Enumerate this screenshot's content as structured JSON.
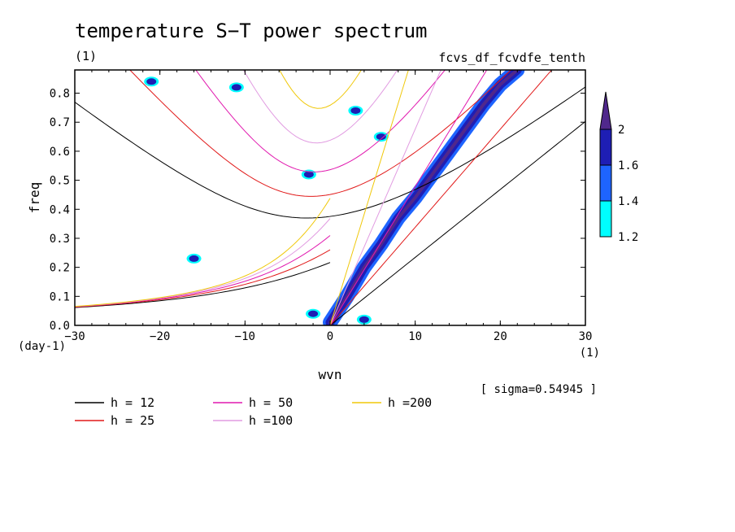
{
  "chart_data": {
    "type": "heatmap",
    "title": "temperature S−T power spectrum",
    "title_units": "(1)",
    "source_label": "fcvs_df_fcvdfe_tenth",
    "xlabel": "wvn",
    "x_units": "(1)",
    "ylabel": "freq",
    "y_units": "(day-1)",
    "xlim": [
      -30,
      30
    ],
    "ylim": [
      0,
      0.88
    ],
    "x_ticks": [
      -30,
      -20,
      -10,
      0,
      10,
      20,
      30
    ],
    "x_tick_labels": [
      "−30",
      "−20",
      "−10",
      "0",
      "10",
      "20",
      "30"
    ],
    "y_ticks": [
      0,
      0.1,
      0.2,
      0.3,
      0.4,
      0.5,
      0.6,
      0.7,
      0.8
    ],
    "y_tick_labels": [
      "0.0",
      "0.1",
      "0.2",
      "0.3",
      "0.4",
      "0.5",
      "0.6",
      "0.7",
      "0.8"
    ],
    "sigma_label": "[ sigma=0.54945 ]",
    "colorbar": {
      "levels": [
        1.2,
        1.4,
        1.6,
        2
      ],
      "level_labels": [
        "1.2",
        "1.4",
        "1.6",
        "2"
      ],
      "colors": [
        "#00ffff",
        "#1e64ff",
        "#1e1eb4",
        "#50288c"
      ]
    },
    "dispersion_curves": [
      {
        "label": "h = 12",
        "h": 12,
        "color": "#000000"
      },
      {
        "label": "h = 25",
        "h": 25,
        "color": "#e11919"
      },
      {
        "label": "h = 50",
        "h": 50,
        "color": "#e119af"
      },
      {
        "label": "h =100",
        "h": 100,
        "color": "#e19be1"
      },
      {
        "label": "h =200",
        "h": 200,
        "color": "#f0c80a"
      }
    ],
    "power_features": [
      {
        "kind": "ridge",
        "x": [
          0,
          2,
          4,
          6,
          8,
          10,
          12,
          14,
          16,
          18,
          20,
          22
        ],
        "y": [
          0.01,
          0.1,
          0.2,
          0.28,
          0.37,
          0.44,
          0.52,
          0.6,
          0.68,
          0.76,
          0.83,
          0.88
        ]
      },
      {
        "kind": "blob",
        "x": -2.5,
        "y": 0.52
      },
      {
        "kind": "blob",
        "x": -21,
        "y": 0.84
      },
      {
        "kind": "blob",
        "x": 3,
        "y": 0.74
      },
      {
        "kind": "blob",
        "x": 6,
        "y": 0.65
      },
      {
        "kind": "blob",
        "x": -2,
        "y": 0.04
      },
      {
        "kind": "blob",
        "x": 4,
        "y": 0.02
      },
      {
        "kind": "blob",
        "x": -16,
        "y": 0.23
      },
      {
        "kind": "blob",
        "x": -11,
        "y": 0.82
      }
    ]
  }
}
